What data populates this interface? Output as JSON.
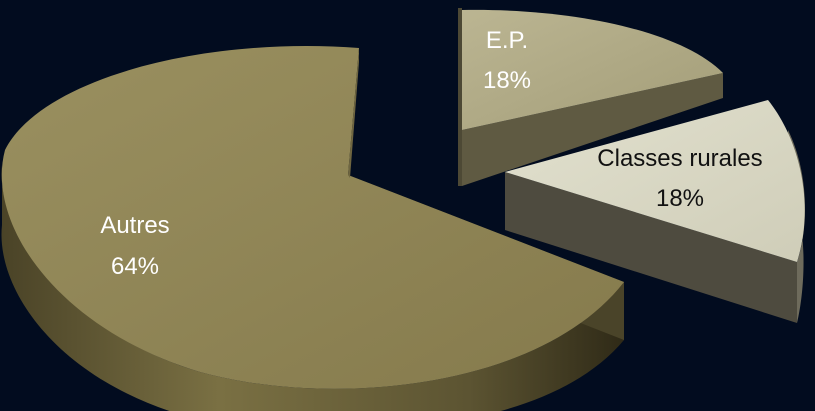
{
  "chart_data": {
    "type": "pie",
    "title": "",
    "slices": [
      {
        "label": "Autres",
        "value": 64,
        "value_label": "64%",
        "color": "#8a7f4f",
        "exploded": false
      },
      {
        "label": "E.P.",
        "value": 18,
        "value_label": "18%",
        "color": "#b1ab86",
        "exploded": true
      },
      {
        "label": "Classes rurales",
        "value": 18,
        "value_label": "18%",
        "color": "#d9d8c5",
        "exploded": true
      }
    ],
    "style": "3d-exploded",
    "legend": "none",
    "background": "#020c1f"
  }
}
